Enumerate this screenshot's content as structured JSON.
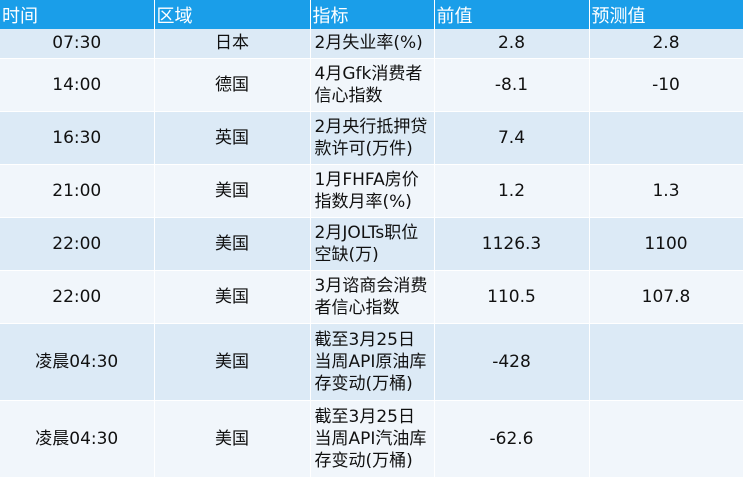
{
  "headers": [
    "时间",
    "区域",
    "指标",
    "前值",
    "预测值"
  ],
  "rows": [
    {
      "time": "07:30",
      "region": "日本",
      "indicator": [
        "2月失业率(%)"
      ],
      "prev": "2.8",
      "forecast": "2.8"
    },
    {
      "time": "14:00",
      "region": "德国",
      "indicator": [
        "4月Gfk消费者",
        "信心指数"
      ],
      "prev": "-8.1",
      "forecast": "-10"
    },
    {
      "time": "16:30",
      "region": "英国",
      "indicator": [
        "2月央行抵押贷",
        "款许可(万件)"
      ],
      "prev": "7.4",
      "forecast": ""
    },
    {
      "time": "21:00",
      "region": "美国",
      "indicator": [
        "1月FHFA房价",
        "指数月率(%)"
      ],
      "prev": "1.2",
      "forecast": "1.3"
    },
    {
      "time": "22:00",
      "region": "美国",
      "indicator": [
        "2月JOLTs职位",
        "空缺(万)"
      ],
      "prev": "1126.3",
      "forecast": "1100"
    },
    {
      "time": "22:00",
      "region": "美国",
      "indicator": [
        "3月谘商会消费",
        "者信心指数"
      ],
      "prev": "110.5",
      "forecast": "107.8"
    },
    {
      "time": "凌晨04:30",
      "region": "美国",
      "indicator": [
        "截至3月25日",
        "当周API原油库",
        "存变动(万桶)"
      ],
      "prev": "-428",
      "forecast": ""
    },
    {
      "time": "凌晨04:30",
      "region": "美国",
      "indicator": [
        "截至3月25日",
        "当周API汽油库",
        "存变动(万桶)"
      ],
      "prev": "-62.6",
      "forecast": ""
    }
  ]
}
